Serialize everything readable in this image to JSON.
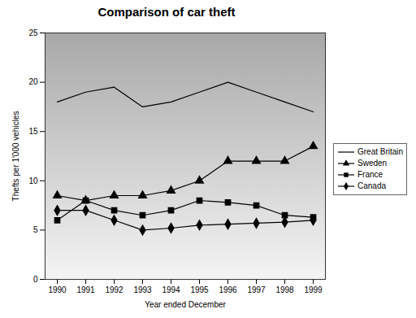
{
  "chart_data": {
    "type": "line",
    "title": "Comparison of car theft",
    "x_label": "Year ended December",
    "y_label": "Thefts per 1'000 vehicles",
    "categories": [
      "1990",
      "1991",
      "1992",
      "1993",
      "1994",
      "1995",
      "1996",
      "1997",
      "1998",
      "1999"
    ],
    "series": [
      {
        "name": "Great Britain",
        "color": "#000000",
        "marker": "none",
        "values": [
          18,
          19,
          19.5,
          17.5,
          18,
          19,
          20,
          19,
          18,
          17
        ]
      },
      {
        "name": "Sweden",
        "color": "#000000",
        "marker": "triangle",
        "values": [
          8.5,
          8,
          8.5,
          8.5,
          9,
          10,
          12,
          12,
          12,
          13.5
        ]
      },
      {
        "name": "France",
        "color": "#000000",
        "marker": "square",
        "values": [
          6,
          8,
          7,
          6.5,
          7,
          8,
          7.8,
          7.5,
          6.5,
          6.3
        ]
      },
      {
        "name": "Canada",
        "color": "#000000",
        "marker": "diamond",
        "values": [
          7,
          7,
          6,
          5,
          5.2,
          5.5,
          5.6,
          5.7,
          5.8,
          6
        ]
      }
    ],
    "ylim": [
      0,
      25
    ],
    "yticks": [
      0,
      5,
      10,
      15,
      20,
      25
    ],
    "grid": false,
    "legend": "right"
  }
}
